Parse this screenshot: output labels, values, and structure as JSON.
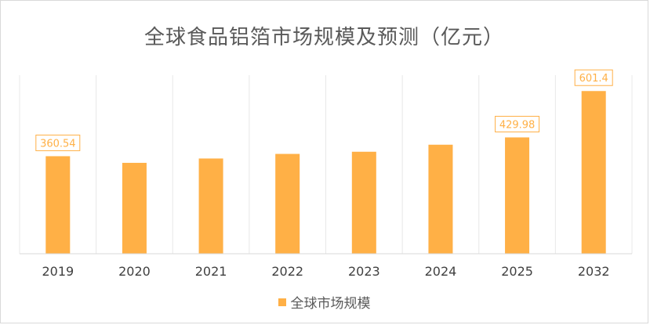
{
  "chart_data": {
    "type": "bar",
    "title": "全球食品铝箔市场规模及预测（亿元）",
    "categories": [
      "2019",
      "2020",
      "2021",
      "2022",
      "2023",
      "2024",
      "2025",
      "2032"
    ],
    "series": [
      {
        "name": "全球市场规模",
        "values": [
          360.54,
          336,
          352,
          369,
          377,
          403,
          429.98,
          601.4
        ],
        "color": "#ffb046"
      }
    ],
    "data_labels": [
      {
        "index": 0,
        "text": "360.54"
      },
      {
        "index": 6,
        "text": "429.98"
      },
      {
        "index": 7,
        "text": "601.4"
      }
    ],
    "ylim": [
      0,
      660
    ],
    "grid": "vertical category separators",
    "legend_position": "bottom"
  }
}
